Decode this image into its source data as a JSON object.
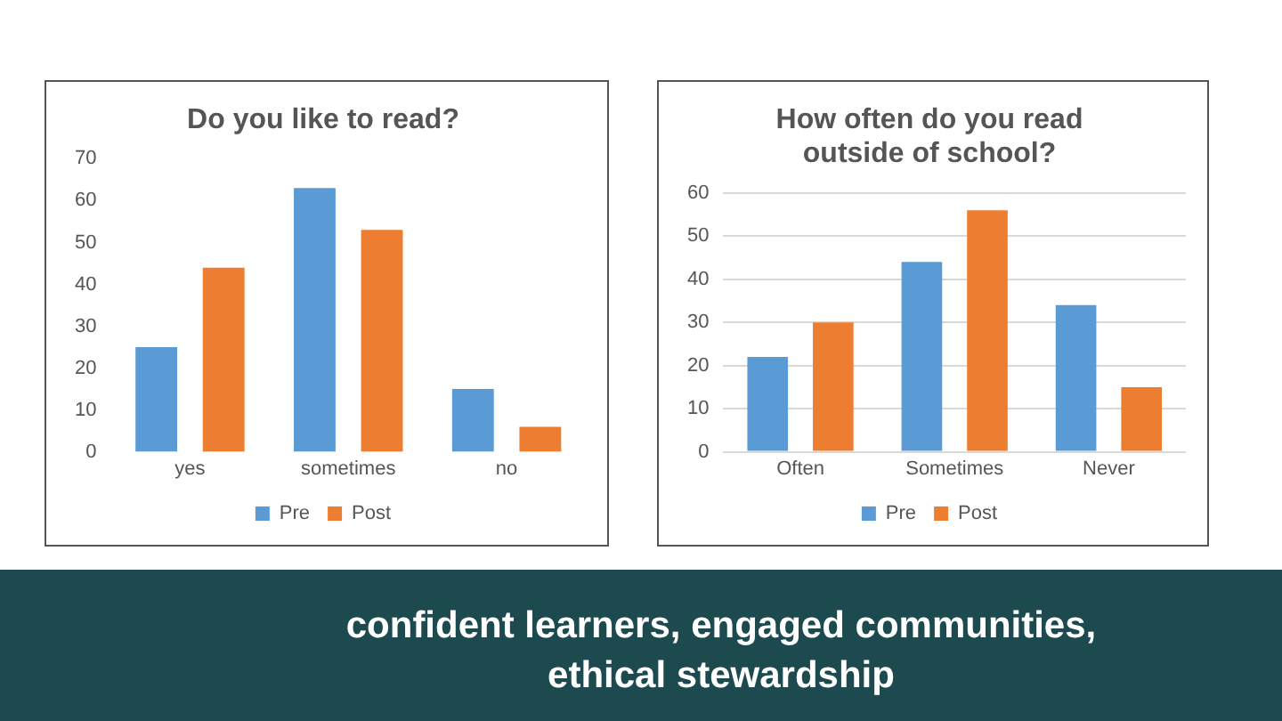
{
  "chart_data": [
    {
      "type": "bar",
      "title": "Do you like to read?",
      "categories": [
        "yes",
        "sometimes",
        "no"
      ],
      "series": [
        {
          "name": "Pre",
          "color": "#5b9bd5",
          "values": [
            25,
            63,
            15
          ]
        },
        {
          "name": "Post",
          "color": "#ed7d31",
          "values": [
            44,
            53,
            6
          ]
        }
      ],
      "ylim": [
        0,
        70
      ],
      "yticks": [
        0,
        10,
        20,
        30,
        40,
        50,
        60,
        70
      ],
      "grid": false,
      "legend": "bottom"
    },
    {
      "type": "bar",
      "title": "How often do you read outside of school?",
      "categories": [
        "Often",
        "Sometimes",
        "Never"
      ],
      "series": [
        {
          "name": "Pre",
          "color": "#5b9bd5",
          "values": [
            22,
            44,
            34
          ]
        },
        {
          "name": "Post",
          "color": "#ed7d31",
          "values": [
            30,
            56,
            15
          ]
        }
      ],
      "ylim": [
        0,
        60
      ],
      "yticks": [
        0,
        10,
        20,
        30,
        40,
        50,
        60
      ],
      "grid": "y",
      "legend": "bottom"
    },
    {
      "type": "other",
      "annotations": [
        "confident learners,  engaged communities,",
        "ethical stewardship"
      ]
    }
  ]
}
